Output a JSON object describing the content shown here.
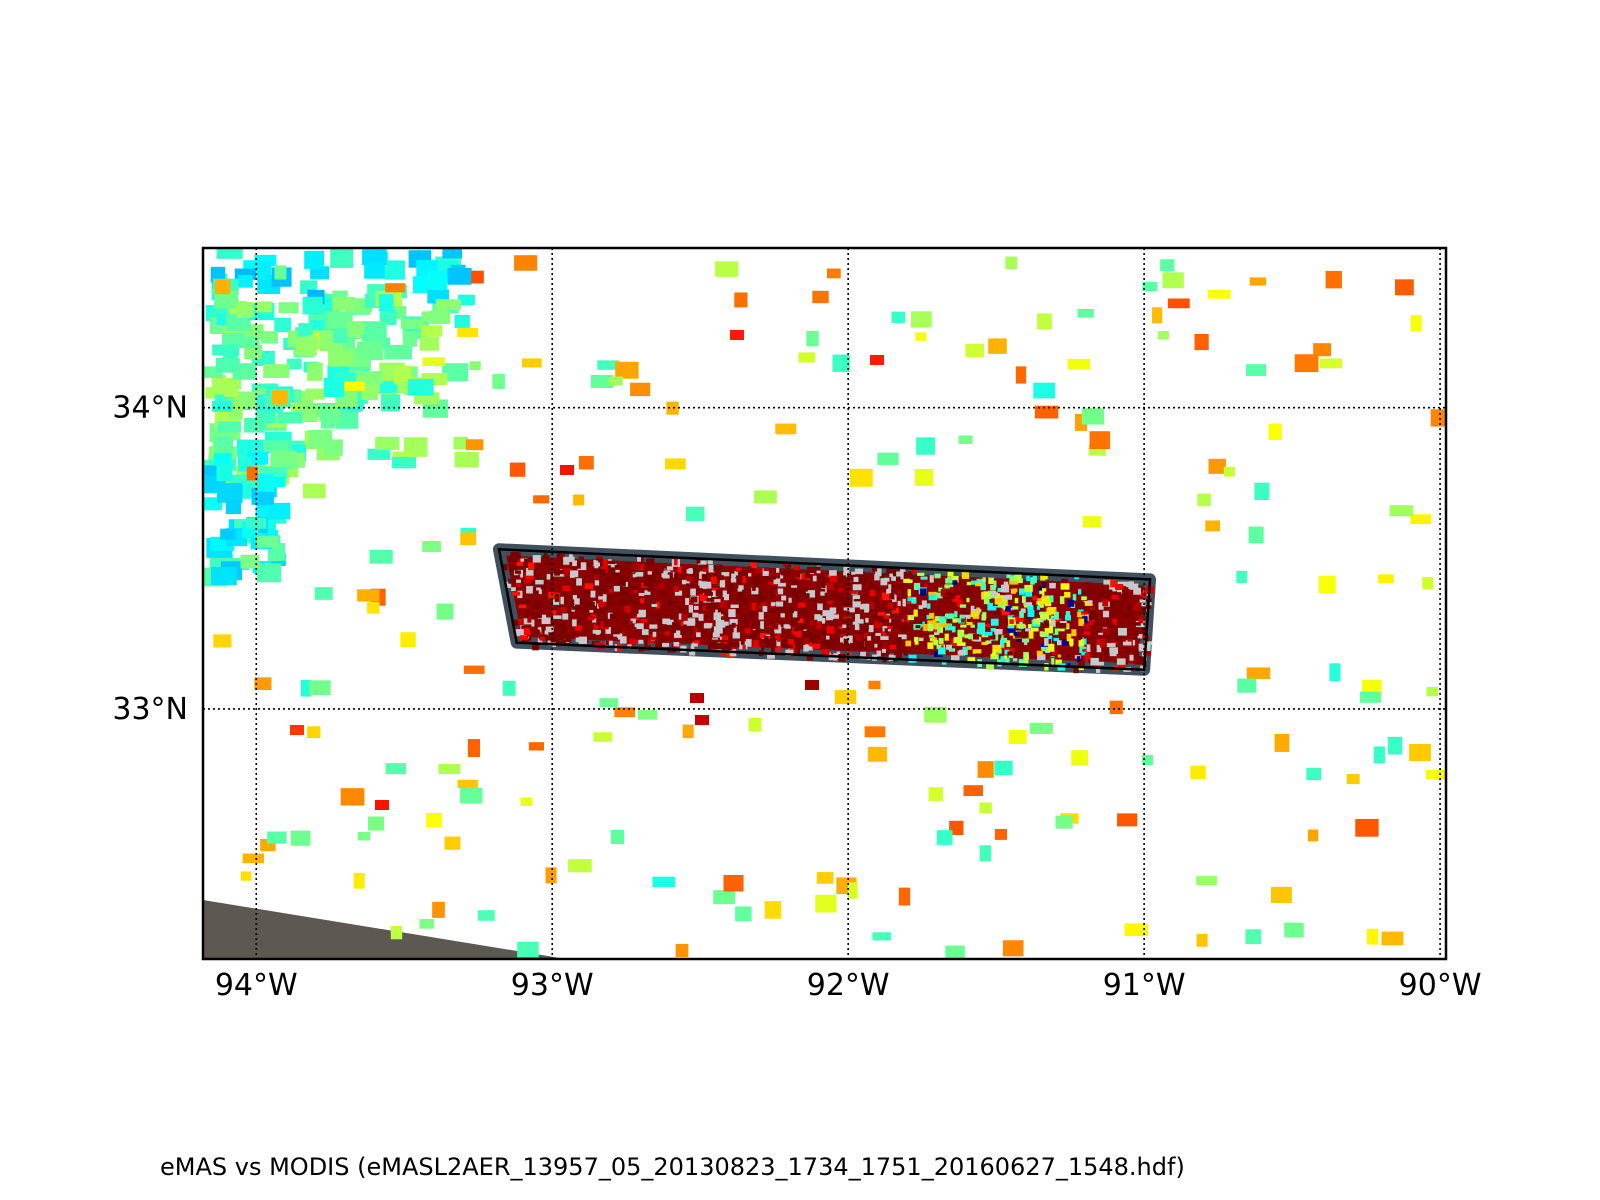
{
  "map": {
    "lon_range": [
      -94.18,
      -89.98
    ],
    "lat_range": [
      32.17,
      34.53
    ],
    "lon_ticks": [
      {
        "value": -94,
        "label": "94°W"
      },
      {
        "value": -93,
        "label": "93°W"
      },
      {
        "value": -92,
        "label": "92°W"
      },
      {
        "value": -91,
        "label": "91°W"
      },
      {
        "value": -90,
        "label": "90°W"
      }
    ],
    "lat_ticks": [
      {
        "value": 34,
        "label": "34°N"
      },
      {
        "value": 33,
        "label": "33°N"
      }
    ],
    "grid": "dotted",
    "colormap": "jet",
    "swath_corners_lonlat": [
      [
        -93.18,
        33.53
      ],
      [
        -90.98,
        33.43
      ],
      [
        -91.0,
        33.13
      ],
      [
        -93.12,
        33.22
      ]
    ],
    "caption": "eMAS vs MODIS (eMASL2AER_13957_05_20130823_1734_1751_20160627_1548.hdf)"
  }
}
